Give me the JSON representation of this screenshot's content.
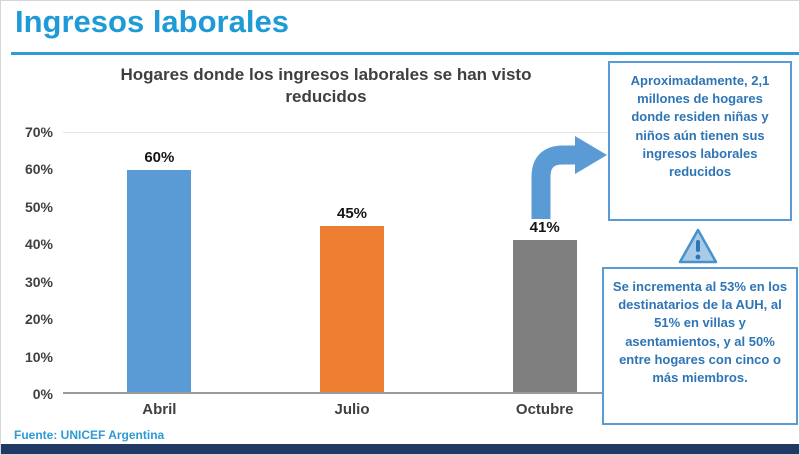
{
  "header": {
    "title": "Ingresos laborales"
  },
  "chart_data": {
    "type": "bar",
    "title": "Hogares donde los ingresos laborales se han visto reducidos",
    "categories": [
      "Abril",
      "Julio",
      "Octubre"
    ],
    "values": [
      60,
      45,
      41
    ],
    "value_labels": [
      "60%",
      "45%",
      "41%"
    ],
    "bar_colors": [
      "#5B9BD5",
      "#ED7D31",
      "#7F7F7F"
    ],
    "ylim": [
      0,
      70
    ],
    "yticks": [
      "0%",
      "10%",
      "20%",
      "30%",
      "40%",
      "50%",
      "60%",
      "70%"
    ],
    "grid": false,
    "legend": "none",
    "xlabel": "",
    "ylabel": ""
  },
  "annotations": {
    "top_box_text": "Aproximadamente, 2,1 millones de hogares donde residen niñas y niños aún tienen sus ingresos laborales reducidos",
    "warning_icon": "exclamation-triangle-icon",
    "bottom_box_text": "Se incrementa al 53% en los destinatarios de la AUH, al 51% en villas y asentamientos, y al 50% entre hogares con cinco o más miembros."
  },
  "footer": {
    "source": "Fuente: UNICEF Argentina"
  },
  "colors": {
    "title_blue": "#1E9BD7",
    "underline_blue": "#2F9BD7",
    "bar_blue": "#5B9BD5",
    "bar_orange": "#ED7D31",
    "bar_gray": "#7F7F7F",
    "box_border_blue": "#5B9BD5",
    "box_text_blue": "#2E75B6",
    "arrow_blue": "#5B9BD5",
    "source_blue": "#2E9AD5",
    "bottom_bar_navy": "#1F3864"
  }
}
